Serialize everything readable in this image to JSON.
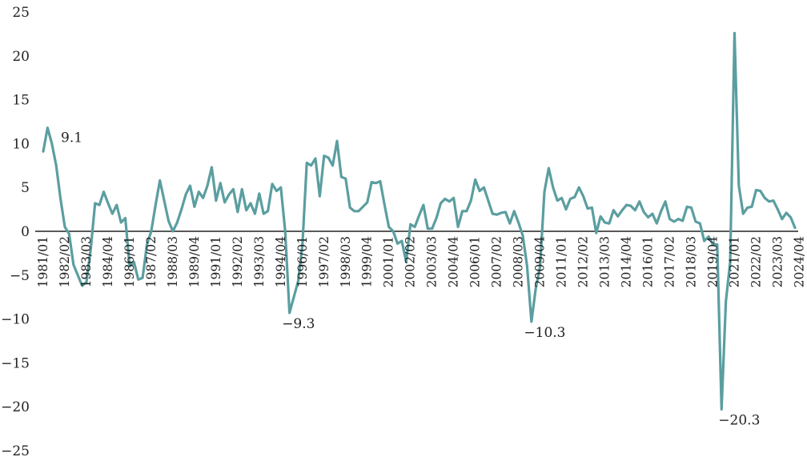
{
  "chart_data": {
    "type": "line",
    "title": "",
    "xlabel": "",
    "ylabel": "",
    "ylim": [
      -25,
      25
    ],
    "yticks": [
      25,
      20,
      15,
      10,
      5,
      0,
      -5,
      -10,
      -15,
      -20,
      -25
    ],
    "grid": false,
    "line_color": "#5b9ea0",
    "axis_color": "#595959",
    "x_start": "1981/01",
    "x_tick_labels": [
      "1981/01",
      "1982/02",
      "1983/03",
      "1984/04",
      "1986/01",
      "1987/02",
      "1988/03",
      "1989/04",
      "1991/01",
      "1992/02",
      "1993/03",
      "1994/04",
      "1996/01",
      "1997/02",
      "1998/03",
      "1999/04",
      "2001/01",
      "2002/02",
      "2003/03",
      "2004/04",
      "2006/01",
      "2007/02",
      "2008/03",
      "2009/04",
      "2011/01",
      "2012/02",
      "2013/03",
      "2014/04",
      "2016/01",
      "2017/02",
      "2018/03",
      "2019/04",
      "2021/01",
      "2022/02",
      "2023/03",
      "2024/04"
    ],
    "annotations": [
      {
        "label": "9.1",
        "x": "1981/01",
        "y": 9.1
      },
      {
        "label": "−9.3",
        "x": "1995/01",
        "y": -9.3
      },
      {
        "label": "−10.3",
        "x": "2009/01",
        "y": -10.3
      },
      {
        "label": "−20.3",
        "x": "2020/02",
        "y": -20.3
      }
    ],
    "values": [
      9.1,
      11.8,
      10.0,
      7.5,
      3.7,
      0.5,
      -0.3,
      -3.8,
      -5.0,
      -6.2,
      -5.8,
      -2.0,
      3.2,
      3.0,
      4.5,
      3.2,
      2.0,
      3.0,
      1.0,
      1.5,
      -4.0,
      -3.5,
      -5.5,
      -5.3,
      -1.5,
      0.0,
      3.0,
      5.8,
      3.5,
      1.2,
      0.0,
      1.0,
      2.5,
      4.2,
      5.2,
      2.8,
      4.5,
      3.8,
      5.2,
      7.3,
      3.5,
      5.5,
      3.3,
      4.2,
      4.8,
      2.2,
      4.8,
      2.4,
      3.2,
      2.0,
      4.3,
      2.0,
      2.3,
      5.4,
      4.6,
      5.0,
      0.0,
      -9.3,
      -7.5,
      -5.7,
      -1.5,
      7.8,
      7.5,
      8.3,
      4.0,
      8.6,
      8.4,
      7.5,
      10.3,
      6.2,
      6.0,
      2.7,
      2.3,
      2.3,
      2.8,
      3.3,
      5.6,
      5.5,
      5.7,
      3.0,
      0.5,
      0.0,
      -1.4,
      -1.1,
      -3.5,
      0.8,
      0.5,
      1.8,
      3.0,
      0.3,
      0.3,
      1.5,
      3.2,
      3.7,
      3.4,
      3.8,
      0.5,
      2.3,
      2.3,
      3.5,
      5.9,
      4.6,
      5.0,
      3.5,
      2.0,
      1.9,
      2.1,
      2.2,
      0.9,
      2.3,
      1.0,
      -0.5,
      -4.0,
      -10.3,
      -6.5,
      -4.0,
      4.5,
      7.2,
      5.0,
      3.5,
      3.8,
      2.5,
      3.7,
      3.9,
      5.0,
      4.0,
      2.6,
      2.7,
      -0.2,
      1.7,
      1.0,
      0.9,
      2.4,
      1.7,
      2.4,
      3.0,
      2.9,
      2.4,
      3.4,
      2.2,
      1.6,
      2.0,
      0.9,
      2.3,
      3.4,
      1.4,
      1.1,
      1.4,
      1.2,
      2.8,
      2.7,
      1.1,
      0.9,
      -1.1,
      -0.6,
      -1.5,
      -1.5,
      -20.3,
      -8.0,
      -3.5,
      22.6,
      5.2,
      2.0,
      2.7,
      2.8,
      4.7,
      4.6,
      3.8,
      3.4,
      3.5,
      2.5,
      1.4,
      2.1,
      1.6,
      0.4
    ]
  }
}
